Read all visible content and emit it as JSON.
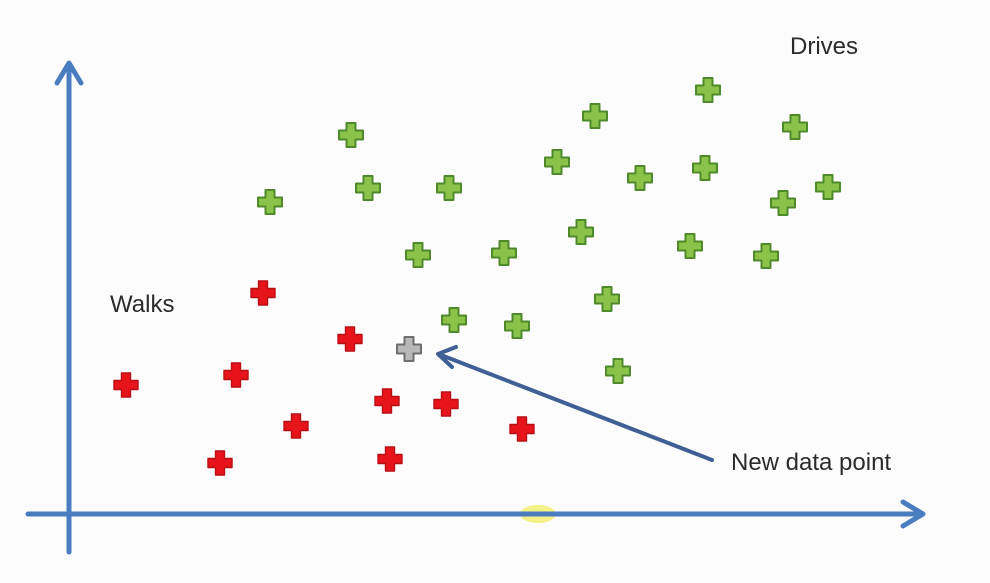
{
  "labels": {
    "drives": "Drives",
    "walks": "Walks",
    "new_point": "New data point"
  },
  "colors": {
    "axis": "#4a7cc0",
    "arrow": "#3f5f95",
    "drives": "#8bc34a",
    "drives_outline": "#4f8a2a",
    "walks": "#e8141b",
    "walks_outline": "#b80f14",
    "new_point": "#b8b8b8",
    "new_point_outline": "#6e6e6e",
    "origin_highlight": "#f3ef7a"
  },
  "points": {
    "drives": [
      [
        708,
        90
      ],
      [
        595,
        116
      ],
      [
        795,
        127
      ],
      [
        351,
        135
      ],
      [
        557,
        162
      ],
      [
        640,
        178
      ],
      [
        705,
        168
      ],
      [
        828,
        187
      ],
      [
        270,
        202
      ],
      [
        368,
        188
      ],
      [
        449,
        188
      ],
      [
        783,
        203
      ],
      [
        418,
        255
      ],
      [
        504,
        253
      ],
      [
        581,
        232
      ],
      [
        690,
        246
      ],
      [
        766,
        256
      ],
      [
        607,
        299
      ],
      [
        454,
        320
      ],
      [
        517,
        326
      ],
      [
        618,
        371
      ]
    ],
    "walks": [
      [
        263,
        293
      ],
      [
        350,
        339
      ],
      [
        126,
        385
      ],
      [
        236,
        375
      ],
      [
        387,
        401
      ],
      [
        446,
        404
      ],
      [
        296,
        426
      ],
      [
        522,
        429
      ],
      [
        220,
        463
      ],
      [
        390,
        459
      ]
    ],
    "new_point": [
      409,
      349
    ]
  }
}
